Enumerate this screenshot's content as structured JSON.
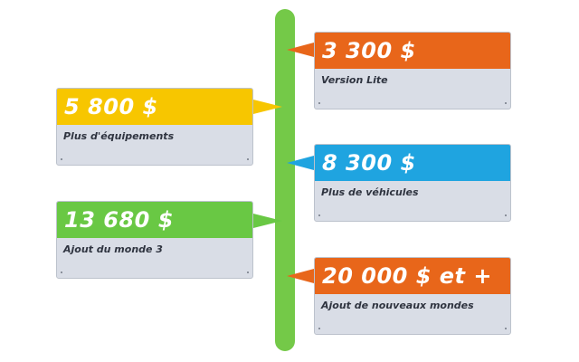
{
  "colors": {
    "spine": "#74c948",
    "orange": "#e8661a",
    "yellow": "#f7c600",
    "blue": "#1fa4e0",
    "green": "#69c844",
    "card_body": "#d9dde6"
  },
  "timeline": {
    "cards": [
      {
        "side": "right",
        "color": "orange",
        "price": "3 300 $",
        "description": "Version Lite"
      },
      {
        "side": "left",
        "color": "yellow",
        "price": "5 800 $",
        "description": "Plus d'équipements"
      },
      {
        "side": "right",
        "color": "blue",
        "price": "8 300 $",
        "description": "Plus de véhicules"
      },
      {
        "side": "left",
        "color": "green",
        "price": "13 680 $",
        "description": "Ajout du monde 3"
      },
      {
        "side": "right",
        "color": "orange",
        "price": "20 000 $ et +",
        "description": "Ajout de nouveaux mondes"
      }
    ]
  }
}
